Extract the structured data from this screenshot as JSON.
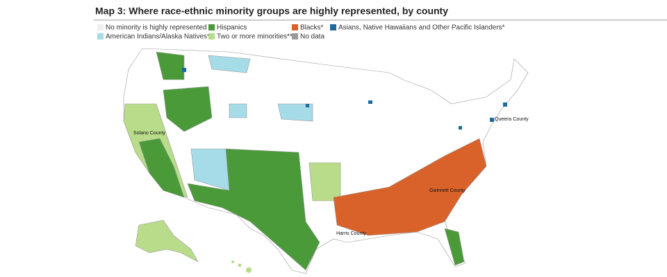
{
  "title": "Map 3: Where race-ethnic minority groups are highly represented, by county",
  "legend": [
    {
      "label": "No minority is highly represented",
      "color": "#efefef"
    },
    {
      "label": "Hispanics",
      "color": "#4a9a3a"
    },
    {
      "label": "Blacks*",
      "color": "#d9622b"
    },
    {
      "label": "Asians, Native Hawaiians and Other Pacific Islanders*",
      "color": "#1c6a9e"
    },
    {
      "label": "American Indians/Alaska Natives*",
      "color": "#a6dbe8"
    },
    {
      "label": "Two or more minorities**",
      "color": "#b8dc8a"
    },
    {
      "label": "No data",
      "color": "#9a9a9a"
    }
  ],
  "annotations": [
    {
      "label": "Solano County"
    },
    {
      "label": "Queens County"
    },
    {
      "label": "Gwinnett County"
    },
    {
      "label": "Harris County"
    }
  ]
}
